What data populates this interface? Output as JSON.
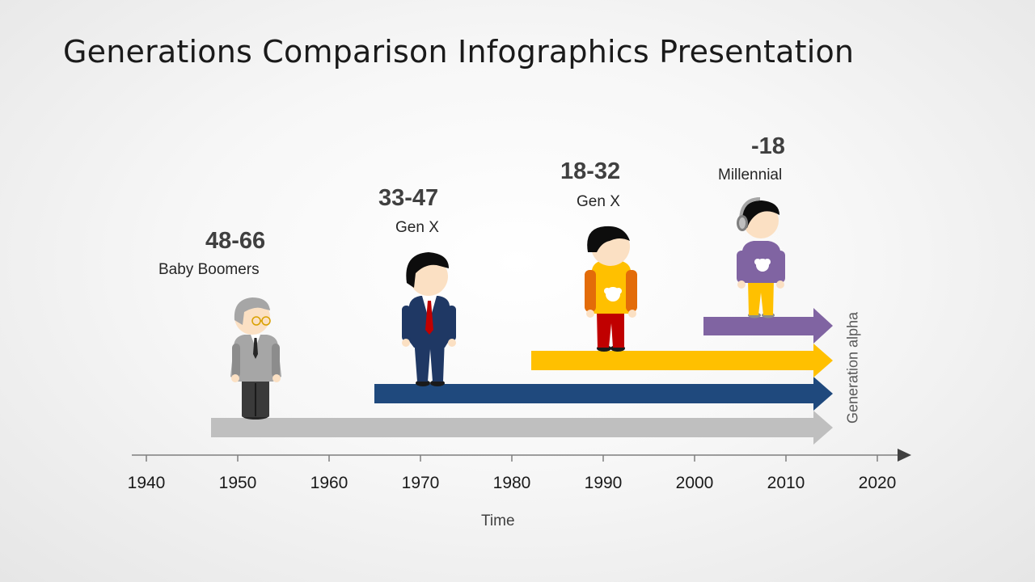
{
  "title": "Generations Comparison Infographics Presentation",
  "generations": [
    {
      "age": "48-66",
      "label": "Baby Boomers",
      "color": "#bfbfbf"
    },
    {
      "age": "33-47",
      "label": "Gen X",
      "color": "#1f497d"
    },
    {
      "age": "18-32",
      "label": "Gen X",
      "color": "#ffc000"
    },
    {
      "age": "-18",
      "label": "Millennial",
      "color": "#8064a2"
    }
  ],
  "side_label": "Generation alpha",
  "axis": {
    "title": "Time",
    "ticks": [
      "1940",
      "1950",
      "1960",
      "1970",
      "1980",
      "1990",
      "2000",
      "2010",
      "2020"
    ]
  },
  "icons": [
    "grandpa-figure",
    "businessman-figure",
    "young-man-figure",
    "teen-headphones-figure"
  ]
}
